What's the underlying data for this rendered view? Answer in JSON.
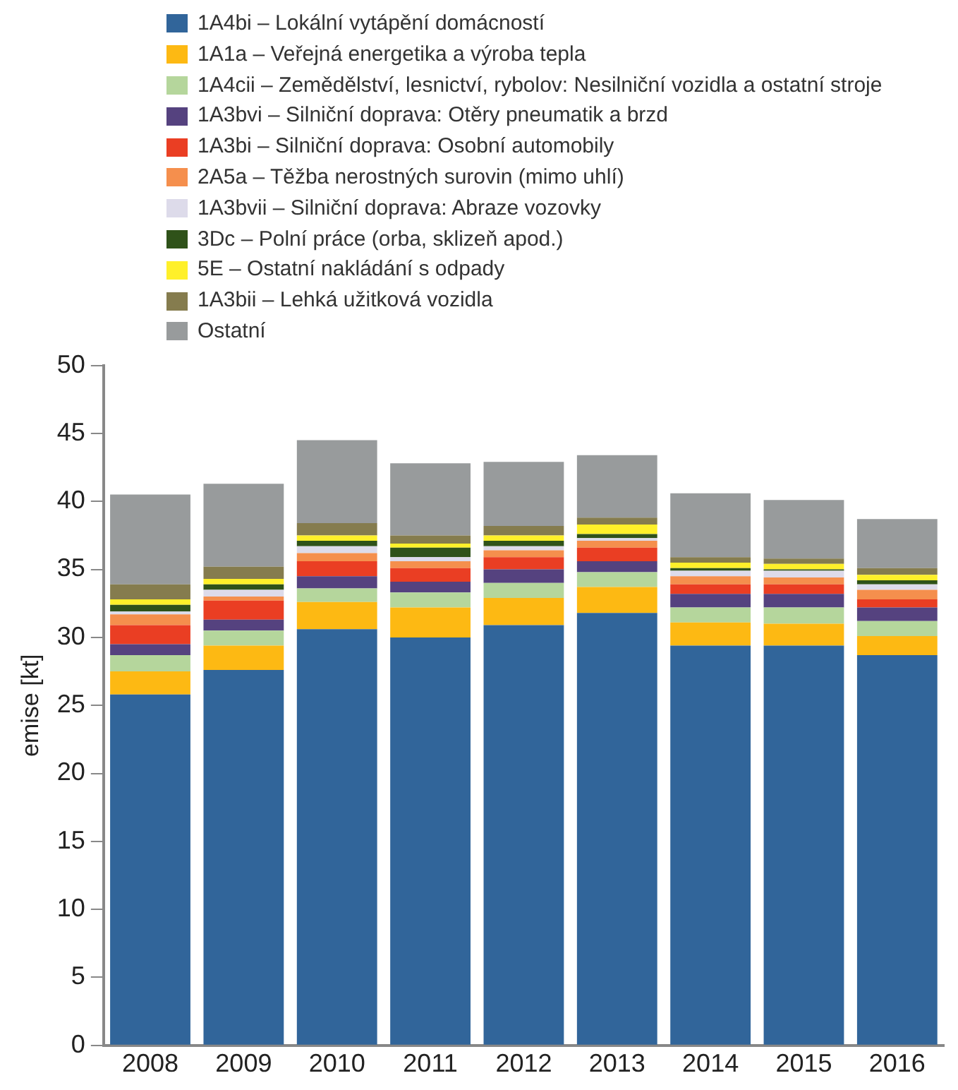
{
  "chart_data": {
    "type": "bar",
    "stacked": true,
    "ylabel": "emise [kt]",
    "categories": [
      "2008",
      "2009",
      "2010",
      "2011",
      "2012",
      "2013",
      "2014",
      "2015",
      "2016"
    ],
    "ylim": [
      0,
      50
    ],
    "yticks": [
      0,
      5,
      10,
      15,
      20,
      25,
      30,
      35,
      40,
      45,
      50
    ],
    "grid": false,
    "legend": "top left",
    "series": [
      {
        "name": "1A4bi – Lokální vytápění domácností",
        "color": "#31659a",
        "values": [
          25.8,
          27.6,
          30.6,
          30.0,
          30.9,
          31.8,
          29.4,
          29.4,
          28.7
        ]
      },
      {
        "name": "1A1a – Veřejná energetika a výroba tepla",
        "color": "#fdb913",
        "values": [
          1.7,
          1.8,
          2.0,
          2.2,
          2.0,
          1.9,
          1.7,
          1.6,
          1.4
        ]
      },
      {
        "name": "1A4cii – Zemědělství, lesnictví, rybolov: Nesilniční vozidla a ostatní stroje",
        "color": "#b5d69c",
        "values": [
          1.2,
          1.1,
          1.0,
          1.1,
          1.1,
          1.1,
          1.1,
          1.2,
          1.1
        ]
      },
      {
        "name": "1A3bvi – Silniční doprava: Otěry pneumatik a brzd",
        "color": "#55427f",
        "values": [
          0.8,
          0.8,
          0.9,
          0.8,
          1.0,
          0.8,
          1.0,
          1.0,
          1.0
        ]
      },
      {
        "name": "1A3bi – Silniční doprava: Osobní automobily",
        "color": "#ea3e23",
        "values": [
          1.4,
          1.4,
          1.1,
          1.0,
          0.9,
          1.0,
          0.7,
          0.7,
          0.6
        ]
      },
      {
        "name": "2A5a – Těžba nerostných surovin (mimo uhlí)",
        "color": "#f58f4d",
        "values": [
          0.8,
          0.3,
          0.6,
          0.5,
          0.5,
          0.5,
          0.6,
          0.5,
          0.7
        ]
      },
      {
        "name": "1A3bvii – Silniční doprava: Abraze vozovky",
        "color": "#dddbea",
        "values": [
          0.2,
          0.5,
          0.5,
          0.3,
          0.3,
          0.2,
          0.4,
          0.5,
          0.4
        ]
      },
      {
        "name": "3Dc – Polní práce (orba, sklizeň apod.)",
        "color": "#2f5219",
        "values": [
          0.5,
          0.4,
          0.4,
          0.7,
          0.4,
          0.3,
          0.2,
          0.1,
          0.3
        ]
      },
      {
        "name": "5E – Ostatní nakládání s odpady",
        "color": "#fff02a",
        "values": [
          0.4,
          0.4,
          0.4,
          0.3,
          0.4,
          0.7,
          0.4,
          0.4,
          0.4
        ]
      },
      {
        "name": "1A3bii – Lehká užitková vozidla",
        "color": "#857c4e",
        "values": [
          1.1,
          0.9,
          0.9,
          0.6,
          0.7,
          0.5,
          0.4,
          0.4,
          0.5
        ]
      },
      {
        "name": "Ostatní",
        "color": "#989b9c",
        "values": [
          6.6,
          6.1,
          6.1,
          5.3,
          4.7,
          4.6,
          4.7,
          4.3,
          3.6
        ]
      }
    ]
  }
}
